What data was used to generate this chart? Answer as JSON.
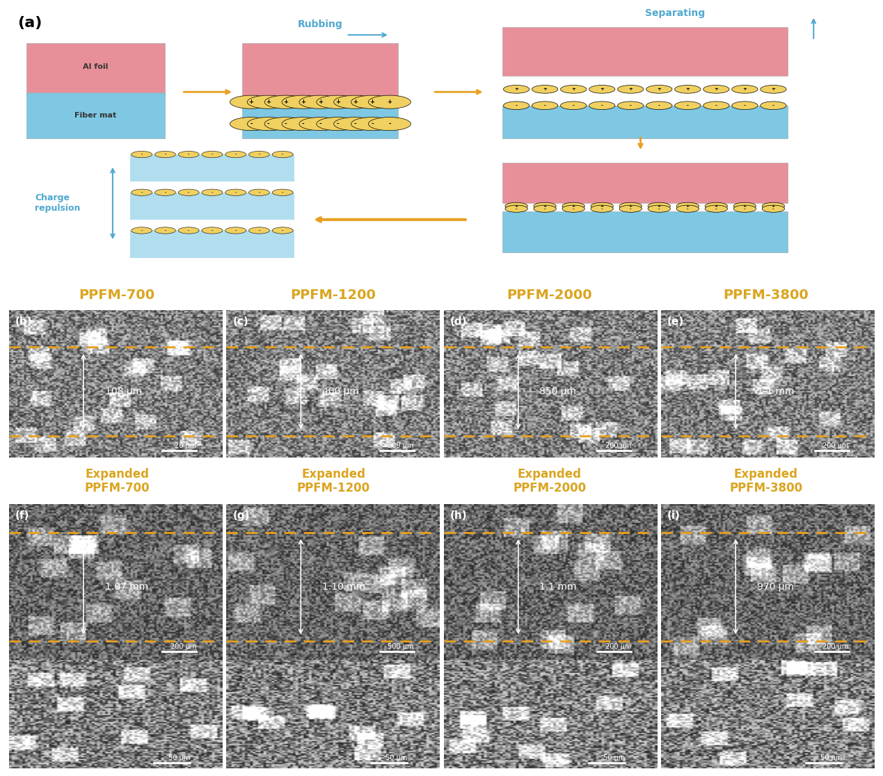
{
  "figure_bg": "#fce8d5",
  "panel_a_bg": "#fce8d5",
  "title_color": "#DAA520",
  "label_a": "(a)",
  "label_b": "(b)",
  "label_c": "(c)",
  "label_d": "(d)",
  "label_e": "(e)",
  "label_f": "(f)",
  "label_g": "(g)",
  "label_h": "(h)",
  "label_i": "(i)",
  "ppfm_labels": [
    "PPFM-700",
    "PPFM-1200",
    "PPFM-2000",
    "PPFM-3800"
  ],
  "expanded_labels": [
    "Expanded\nPPFM-700",
    "Expanded\nPPFM-1200",
    "Expanded\nPPFM-2000",
    "Expanded\nPPFM-3800"
  ],
  "measurements_row1": [
    "108 μm",
    "400 μm",
    "850 μm",
    "1.1 mm"
  ],
  "scalebars_row1": [
    "20 μm",
    "200 μm",
    "200 μm",
    "200 μm"
  ],
  "measurements_row2": [
    "1.07 mm",
    "1.10 mm",
    "1.1 mm",
    "970 μm"
  ],
  "scalebars_row2": [
    "200 μm",
    "500 μm",
    "200 μm",
    "200 μm"
  ],
  "scalebars_row3": [
    "50 μm",
    "50 μm",
    "50 μm",
    "50 μm"
  ],
  "rubbing_label": "Rubbing",
  "separating_label": "Separating",
  "charge_repulsion_label": "Charge\nrepulsion",
  "al_foil_label": "Al foil",
  "fiber_mat_label": "Fiber mat",
  "orange_color": "#E8A020",
  "gold_color": "#DAA520",
  "blue_color": "#4FA8D0",
  "pink_color": "#E8909A",
  "fiber_color": "#7EC8E3",
  "arrow_color": "#E8A020",
  "dashed_line_color": "#E8A020",
  "red_dashed_color": "#CC3333",
  "white_color": "#FFFFFF",
  "gray_sem": "#808080"
}
